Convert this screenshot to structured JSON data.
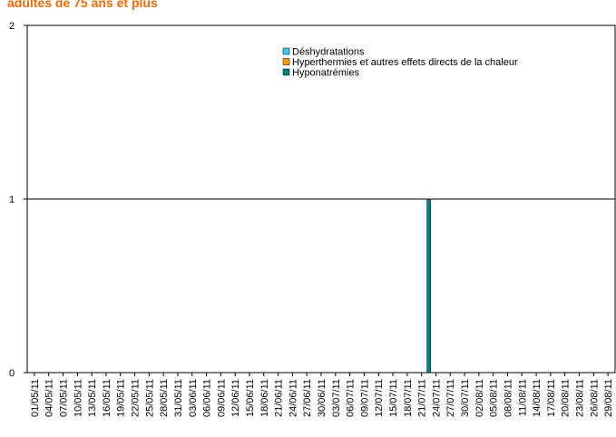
{
  "chart_data": {
    "type": "bar",
    "title": "adultes de 75 ans et plus",
    "categories": [
      "01/05/11",
      "04/05/11",
      "07/05/11",
      "10/05/11",
      "13/05/11",
      "16/05/11",
      "19/05/11",
      "22/05/11",
      "25/05/11",
      "28/05/11",
      "31/05/11",
      "03/06/11",
      "06/06/11",
      "09/06/11",
      "12/06/11",
      "15/06/11",
      "18/06/11",
      "21/06/11",
      "24/06/11",
      "27/06/11",
      "30/06/11",
      "03/07/11",
      "06/07/11",
      "09/07/11",
      "12/07/11",
      "15/07/11",
      "18/07/11",
      "21/07/11",
      "24/07/11",
      "27/07/11",
      "30/07/11",
      "02/08/11",
      "05/08/11",
      "08/08/11",
      "11/08/11",
      "14/08/11",
      "17/08/11",
      "20/08/11",
      "23/08/11",
      "26/08/11",
      "29/08/11"
    ],
    "series": [
      {
        "name": "Déshydratations",
        "color": "#33ccff",
        "values": [
          0,
          0,
          0,
          0,
          0,
          0,
          0,
          0,
          0,
          0,
          0,
          0,
          0,
          0,
          0,
          0,
          0,
          0,
          0,
          0,
          0,
          0,
          0,
          0,
          0,
          0,
          0,
          0,
          0,
          0,
          0,
          0,
          0,
          0,
          0,
          0,
          0,
          0,
          0,
          0,
          0
        ]
      },
      {
        "name": "Hyperthermies et autres effets directs de la chaleur",
        "color": "#ff9900",
        "values": [
          0,
          0,
          0,
          0,
          0,
          0,
          0,
          0,
          0,
          0,
          0,
          0,
          0,
          0,
          0,
          0,
          0,
          0,
          0,
          0,
          0,
          0,
          0,
          0,
          0,
          0,
          0,
          0,
          0,
          0,
          0,
          0,
          0,
          0,
          0,
          0,
          0,
          0,
          0,
          0,
          0
        ]
      },
      {
        "name": "Hyponatrémies",
        "color": "#008080",
        "values": [
          0,
          0,
          0,
          0,
          0,
          0,
          0,
          0,
          0,
          0,
          0,
          0,
          0,
          0,
          0,
          0,
          0,
          0,
          0,
          0,
          0,
          0,
          0,
          0,
          0,
          0,
          0,
          1,
          0,
          0,
          0,
          0,
          0,
          0,
          0,
          0,
          0,
          0,
          0,
          0,
          0
        ]
      }
    ],
    "ylim": [
      0,
      2
    ],
    "yticks": [
      0,
      1,
      2
    ],
    "grid": true
  }
}
